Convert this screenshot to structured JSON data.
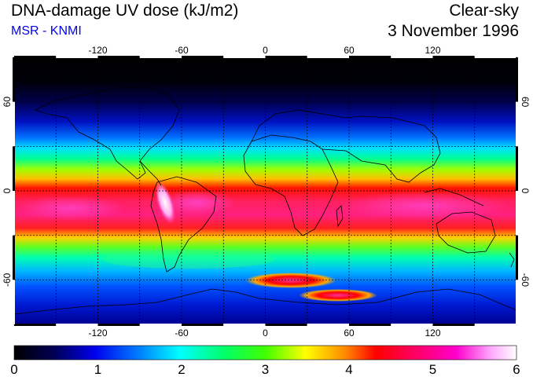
{
  "header": {
    "title": "DNA-damage UV dose (kJ/m2)",
    "source": "MSR - KNMI",
    "condition": "Clear-sky",
    "date": "3 November 1996"
  },
  "map": {
    "longitude_labels": [
      "-120",
      "-60",
      "0",
      "60",
      "120"
    ],
    "longitude_values": [
      -120,
      -60,
      0,
      60,
      120
    ],
    "latitude_labels": [
      "60",
      "0",
      "-60"
    ],
    "latitude_values": [
      60,
      0,
      -60
    ],
    "lat_range": [
      -90,
      90
    ],
    "lon_range": [
      -180,
      180
    ]
  },
  "colorbar": {
    "min": 0,
    "max": 6,
    "tick_labels": [
      "0",
      "1",
      "2",
      "3",
      "4",
      "5",
      "6"
    ],
    "colors": [
      "#000000",
      "#000066",
      "#0000ff",
      "#0088ff",
      "#00ffff",
      "#00ff88",
      "#00ff00",
      "#aaff00",
      "#ffff00",
      "#ff8800",
      "#ff0000",
      "#ff0066",
      "#ff00aa",
      "#ff55dd",
      "#ffccff",
      "#ffffff"
    ]
  },
  "colors": {
    "source_text": "#0000ee",
    "coastline": "#000000",
    "grid": "#000000"
  }
}
